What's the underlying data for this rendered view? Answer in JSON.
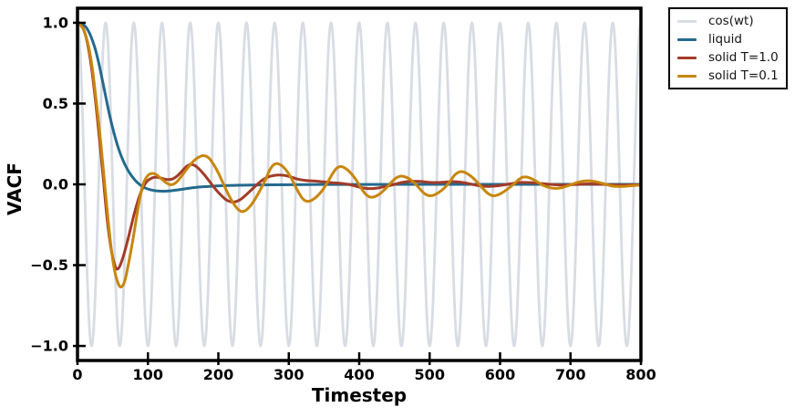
{
  "chart_data": {
    "type": "line",
    "title": "",
    "xlabel": "Timestep",
    "ylabel": "VACF",
    "xlim": [
      0,
      800
    ],
    "ylim": [
      -1.09,
      1.09
    ],
    "grid": false,
    "legend_position": "outside-top-right",
    "xticks": [
      0,
      100,
      200,
      300,
      400,
      500,
      600,
      700,
      800
    ],
    "xtick_labels": [
      "0",
      "100",
      "200",
      "300",
      "400",
      "500",
      "600",
      "700",
      "800"
    ],
    "yticks": [
      1.0,
      0.5,
      0.0,
      -0.5,
      -1.0
    ],
    "ytick_labels": [
      "1.0",
      "0.5",
      "0.0",
      "−0.5",
      "−1.0"
    ],
    "colors": {
      "background": "#ffffff",
      "frame": "#000000",
      "text": "#000000"
    },
    "series": [
      {
        "name": "cos(wt)",
        "color": "#d8dce3",
        "width": 2.8,
        "model": {
          "kind": "cosine",
          "amplitude": 1.0,
          "period": 40,
          "t_start": 0,
          "t_end": 800,
          "dt": 1
        }
      },
      {
        "name": "liquid",
        "color": "#24698e",
        "width": 3,
        "points": [
          [
            0,
            1.0
          ],
          [
            8,
            0.99
          ],
          [
            16,
            0.945
          ],
          [
            24,
            0.855
          ],
          [
            30,
            0.755
          ],
          [
            36,
            0.63
          ],
          [
            40,
            0.545
          ],
          [
            46,
            0.42
          ],
          [
            52,
            0.315
          ],
          [
            58,
            0.225
          ],
          [
            64,
            0.155
          ],
          [
            70,
            0.1
          ],
          [
            76,
            0.058
          ],
          [
            82,
            0.025
          ],
          [
            88,
            0.0
          ],
          [
            95,
            -0.02
          ],
          [
            103,
            -0.033
          ],
          [
            112,
            -0.04
          ],
          [
            122,
            -0.042
          ],
          [
            132,
            -0.04
          ],
          [
            143,
            -0.034
          ],
          [
            154,
            -0.027
          ],
          [
            166,
            -0.02
          ],
          [
            178,
            -0.015
          ],
          [
            192,
            -0.011
          ],
          [
            208,
            -0.008
          ],
          [
            226,
            -0.006
          ],
          [
            248,
            -0.004
          ],
          [
            274,
            -0.003
          ],
          [
            305,
            -0.002
          ],
          [
            345,
            -0.001
          ],
          [
            400,
            -0.001
          ],
          [
            470,
            0.0
          ],
          [
            560,
            0.0
          ],
          [
            680,
            0.0
          ],
          [
            800,
            0.0
          ]
        ]
      },
      {
        "name": "solid T=1.0",
        "color": "#a23b28",
        "width": 3,
        "points": [
          [
            0,
            1.0
          ],
          [
            8,
            0.965
          ],
          [
            14,
            0.875
          ],
          [
            20,
            0.72
          ],
          [
            26,
            0.5
          ],
          [
            32,
            0.245
          ],
          [
            37,
            0.02
          ],
          [
            42,
            -0.21
          ],
          [
            47,
            -0.38
          ],
          [
            51,
            -0.47
          ],
          [
            55,
            -0.52
          ],
          [
            59,
            -0.515
          ],
          [
            64,
            -0.46
          ],
          [
            69,
            -0.385
          ],
          [
            75,
            -0.28
          ],
          [
            81,
            -0.175
          ],
          [
            87,
            -0.085
          ],
          [
            93,
            -0.02
          ],
          [
            99,
            0.02
          ],
          [
            106,
            0.04
          ],
          [
            113,
            0.044
          ],
          [
            120,
            0.037
          ],
          [
            127,
            0.03
          ],
          [
            134,
            0.032
          ],
          [
            141,
            0.05
          ],
          [
            148,
            0.08
          ],
          [
            154,
            0.108
          ],
          [
            160,
            0.122
          ],
          [
            166,
            0.118
          ],
          [
            172,
            0.098
          ],
          [
            180,
            0.06
          ],
          [
            188,
            0.015
          ],
          [
            196,
            -0.03
          ],
          [
            204,
            -0.068
          ],
          [
            211,
            -0.095
          ],
          [
            218,
            -0.108
          ],
          [
            224,
            -0.108
          ],
          [
            231,
            -0.095
          ],
          [
            238,
            -0.07
          ],
          [
            246,
            -0.038
          ],
          [
            254,
            -0.005
          ],
          [
            262,
            0.025
          ],
          [
            270,
            0.045
          ],
          [
            280,
            0.056
          ],
          [
            290,
            0.057
          ],
          [
            300,
            0.05
          ],
          [
            312,
            0.033
          ],
          [
            324,
            0.024
          ],
          [
            335,
            0.021
          ],
          [
            348,
            0.016
          ],
          [
            362,
            0.01
          ],
          [
            375,
            0.006
          ],
          [
            387,
            -0.002
          ],
          [
            400,
            -0.017
          ],
          [
            412,
            -0.026
          ],
          [
            424,
            -0.024
          ],
          [
            437,
            -0.013
          ],
          [
            450,
            0.0
          ],
          [
            462,
            0.013
          ],
          [
            474,
            0.019
          ],
          [
            486,
            0.018
          ],
          [
            498,
            0.013
          ],
          [
            510,
            0.011
          ],
          [
            522,
            0.014
          ],
          [
            534,
            0.017
          ],
          [
            546,
            0.012
          ],
          [
            558,
            0.002
          ],
          [
            570,
            -0.008
          ],
          [
            582,
            -0.013
          ],
          [
            594,
            -0.01
          ],
          [
            606,
            -0.003
          ],
          [
            618,
            0.006
          ],
          [
            630,
            0.012
          ],
          [
            642,
            0.011
          ],
          [
            654,
            0.007
          ],
          [
            666,
            0.002
          ],
          [
            678,
            -0.002
          ],
          [
            690,
            -0.004
          ],
          [
            702,
            -0.002
          ],
          [
            714,
            0.001
          ],
          [
            726,
            0.003
          ],
          [
            738,
            0.002
          ],
          [
            750,
            -0.001
          ],
          [
            762,
            -0.004
          ],
          [
            774,
            -0.004
          ],
          [
            786,
            -0.003
          ],
          [
            800,
            -0.002
          ]
        ]
      },
      {
        "name": "solid T=0.1",
        "color": "#c8860d",
        "width": 3,
        "points": [
          [
            0,
            1.0
          ],
          [
            8,
            0.962
          ],
          [
            15,
            0.868
          ],
          [
            21,
            0.72
          ],
          [
            27,
            0.5
          ],
          [
            33,
            0.26
          ],
          [
            38,
            0.03
          ],
          [
            43,
            -0.2
          ],
          [
            48,
            -0.4
          ],
          [
            53,
            -0.54
          ],
          [
            58,
            -0.615
          ],
          [
            62,
            -0.635
          ],
          [
            67,
            -0.6
          ],
          [
            72,
            -0.5
          ],
          [
            78,
            -0.36
          ],
          [
            84,
            -0.2
          ],
          [
            89,
            -0.075
          ],
          [
            94,
            0.01
          ],
          [
            100,
            0.055
          ],
          [
            106,
            0.068
          ],
          [
            112,
            0.06
          ],
          [
            119,
            0.035
          ],
          [
            126,
            0.01
          ],
          [
            132,
            -0.002
          ],
          [
            138,
            0.005
          ],
          [
            144,
            0.03
          ],
          [
            151,
            0.07
          ],
          [
            158,
            0.11
          ],
          [
            165,
            0.145
          ],
          [
            172,
            0.168
          ],
          [
            179,
            0.178
          ],
          [
            186,
            0.165
          ],
          [
            193,
            0.125
          ],
          [
            200,
            0.07
          ],
          [
            207,
            0.005
          ],
          [
            214,
            -0.06
          ],
          [
            221,
            -0.115
          ],
          [
            227,
            -0.15
          ],
          [
            233,
            -0.168
          ],
          [
            239,
            -0.16
          ],
          [
            246,
            -0.13
          ],
          [
            253,
            -0.085
          ],
          [
            260,
            -0.03
          ],
          [
            267,
            0.03
          ],
          [
            272,
            0.08
          ],
          [
            277,
            0.115
          ],
          [
            282,
            0.128
          ],
          [
            288,
            0.122
          ],
          [
            295,
            0.095
          ],
          [
            302,
            0.05
          ],
          [
            308,
            0.0
          ],
          [
            314,
            -0.05
          ],
          [
            320,
            -0.09
          ],
          [
            326,
            -0.105
          ],
          [
            332,
            -0.1
          ],
          [
            340,
            -0.075
          ],
          [
            348,
            -0.035
          ],
          [
            356,
            0.02
          ],
          [
            362,
            0.065
          ],
          [
            368,
            0.1
          ],
          [
            374,
            0.11
          ],
          [
            380,
            0.1
          ],
          [
            388,
            0.07
          ],
          [
            396,
            0.025
          ],
          [
            403,
            -0.025
          ],
          [
            409,
            -0.06
          ],
          [
            415,
            -0.078
          ],
          [
            421,
            -0.077
          ],
          [
            429,
            -0.06
          ],
          [
            437,
            -0.028
          ],
          [
            445,
            0.01
          ],
          [
            452,
            0.038
          ],
          [
            458,
            0.05
          ],
          [
            464,
            0.048
          ],
          [
            472,
            0.032
          ],
          [
            480,
            0.002
          ],
          [
            487,
            -0.032
          ],
          [
            493,
            -0.058
          ],
          [
            499,
            -0.07
          ],
          [
            505,
            -0.068
          ],
          [
            513,
            -0.05
          ],
          [
            521,
            -0.022
          ],
          [
            529,
            0.018
          ],
          [
            535,
            0.055
          ],
          [
            541,
            0.075
          ],
          [
            547,
            0.078
          ],
          [
            554,
            0.065
          ],
          [
            562,
            0.038
          ],
          [
            570,
            0.002
          ],
          [
            577,
            -0.032
          ],
          [
            583,
            -0.057
          ],
          [
            589,
            -0.07
          ],
          [
            595,
            -0.068
          ],
          [
            603,
            -0.052
          ],
          [
            611,
            -0.028
          ],
          [
            619,
            0.0
          ],
          [
            626,
            0.028
          ],
          [
            632,
            0.044
          ],
          [
            638,
            0.045
          ],
          [
            646,
            0.032
          ],
          [
            654,
            0.012
          ],
          [
            662,
            -0.008
          ],
          [
            670,
            -0.02
          ],
          [
            678,
            -0.025
          ],
          [
            686,
            -0.022
          ],
          [
            694,
            -0.012
          ],
          [
            702,
            0.0
          ],
          [
            710,
            0.012
          ],
          [
            718,
            0.02
          ],
          [
            726,
            0.022
          ],
          [
            734,
            0.018
          ],
          [
            742,
            0.01
          ],
          [
            750,
            0.0
          ],
          [
            758,
            -0.009
          ],
          [
            766,
            -0.013
          ],
          [
            774,
            -0.013
          ],
          [
            782,
            -0.01
          ],
          [
            790,
            -0.007
          ],
          [
            800,
            -0.005
          ]
        ]
      }
    ]
  }
}
